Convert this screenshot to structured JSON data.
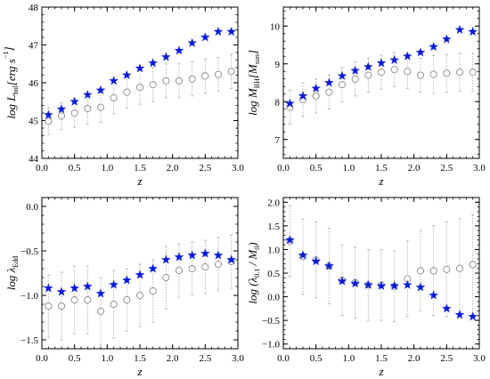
{
  "chart_data": [
    {
      "type": "scatter",
      "xlabel": "z",
      "ylabel_main": "log L",
      "ylabel_sub": "bol",
      "ylabel_unit": "[erg s",
      "ylabel_sup": "−1",
      "ylabel_close": "]",
      "xlim": [
        0.0,
        3.0
      ],
      "ylim": [
        44,
        48
      ],
      "xticks": [
        0.0,
        0.5,
        1.0,
        1.5,
        2.0,
        2.5,
        3.0
      ],
      "xtick_labels": [
        "0.0",
        "0.5",
        "1.0",
        "1.5",
        "2.0",
        "2.5",
        "3.0"
      ],
      "yticks": [
        44,
        45,
        46,
        47,
        48
      ],
      "ytick_labels": [
        "44",
        "45",
        "46",
        "47",
        "48"
      ],
      "series": [
        {
          "marker": "star",
          "color": "#0a1adc",
          "x": [
            0.1,
            0.3,
            0.5,
            0.7,
            0.9,
            1.1,
            1.3,
            1.5,
            1.7,
            1.9,
            2.1,
            2.3,
            2.5,
            2.7,
            2.9
          ],
          "y": [
            45.15,
            45.3,
            45.5,
            45.68,
            45.8,
            46.05,
            46.2,
            46.38,
            46.52,
            46.68,
            46.85,
            47.05,
            47.2,
            47.35,
            47.35
          ]
        },
        {
          "marker": "circle",
          "color": "#888888",
          "x": [
            0.1,
            0.3,
            0.5,
            0.7,
            0.9,
            1.1,
            1.3,
            1.5,
            1.7,
            1.9,
            2.1,
            2.3,
            2.5,
            2.7,
            2.9
          ],
          "y": [
            44.98,
            45.12,
            45.2,
            45.32,
            45.35,
            45.6,
            45.75,
            45.88,
            45.95,
            46.05,
            46.05,
            46.1,
            46.18,
            46.22,
            46.3
          ],
          "err": [
            0.35,
            0.35,
            0.38,
            0.4,
            0.4,
            0.42,
            0.42,
            0.45,
            0.45,
            0.45,
            0.45,
            0.45,
            0.45,
            0.45,
            0.45
          ]
        }
      ]
    },
    {
      "type": "scatter",
      "xlabel": "z",
      "ylabel_main": "log M",
      "ylabel_sub": "BH",
      "ylabel_unit": "[M",
      "ylabel_sub2": "sun",
      "ylabel_close": "]",
      "xlim": [
        0.0,
        3.0
      ],
      "ylim": [
        6.5,
        10.5
      ],
      "xticks": [
        0.0,
        0.5,
        1.0,
        1.5,
        2.0,
        2.5,
        3.0
      ],
      "xtick_labels": [
        "0.0",
        "0.5",
        "1.0",
        "1.5",
        "2.0",
        "2.5",
        "3.0"
      ],
      "yticks": [
        7,
        8,
        9,
        10
      ],
      "ytick_labels": [
        "7",
        "8",
        "9",
        "10"
      ],
      "series": [
        {
          "marker": "star",
          "color": "#0a1adc",
          "x": [
            0.1,
            0.3,
            0.5,
            0.7,
            0.9,
            1.1,
            1.3,
            1.5,
            1.7,
            1.9,
            2.1,
            2.3,
            2.5,
            2.7,
            2.9
          ],
          "y": [
            7.95,
            8.15,
            8.35,
            8.5,
            8.68,
            8.82,
            8.92,
            9.02,
            9.1,
            9.2,
            9.3,
            9.45,
            9.65,
            9.9,
            9.85
          ],
          "legend": null
        },
        {
          "marker": "circle",
          "color": "#888888",
          "x": [
            0.1,
            0.3,
            0.5,
            0.7,
            0.9,
            1.1,
            1.3,
            1.5,
            1.7,
            1.9,
            2.1,
            2.3,
            2.5,
            2.7,
            2.9
          ],
          "y": [
            7.85,
            8.05,
            8.15,
            8.25,
            8.45,
            8.6,
            8.7,
            8.78,
            8.85,
            8.8,
            8.7,
            8.72,
            8.75,
            8.78,
            8.78
          ],
          "err": [
            0.45,
            0.45,
            0.45,
            0.45,
            0.45,
            0.45,
            0.45,
            0.45,
            0.45,
            0.45,
            0.45,
            0.5,
            0.5,
            0.5,
            0.5
          ]
        }
      ]
    },
    {
      "type": "scatter",
      "xlabel": "z",
      "ylabel_main": "log λ",
      "ylabel_sub": "Edd",
      "xlim": [
        0.0,
        3.0
      ],
      "ylim": [
        -1.6,
        0.1
      ],
      "xticks": [
        0.0,
        0.5,
        1.0,
        1.5,
        2.0,
        2.5,
        3.0
      ],
      "xtick_labels": [
        "0.0",
        "0.5",
        "1.0",
        "1.5",
        "2.0",
        "2.5",
        "3.0"
      ],
      "yticks": [
        -1.5,
        -1.0,
        -0.5,
        0.0
      ],
      "ytick_labels": [
        "−1.5",
        "−1.0",
        "−0.5",
        "0.0"
      ],
      "series": [
        {
          "marker": "star",
          "color": "#0a1adc",
          "x": [
            0.1,
            0.3,
            0.5,
            0.7,
            0.9,
            1.1,
            1.3,
            1.5,
            1.7,
            1.9,
            2.1,
            2.3,
            2.5,
            2.7,
            2.9
          ],
          "y": [
            -0.92,
            -0.96,
            -0.92,
            -0.9,
            -0.98,
            -0.88,
            -0.83,
            -0.77,
            -0.7,
            -0.6,
            -0.57,
            -0.55,
            -0.53,
            -0.55,
            -0.6
          ]
        },
        {
          "marker": "circle",
          "color": "#888888",
          "x": [
            0.1,
            0.3,
            0.5,
            0.7,
            0.9,
            1.1,
            1.3,
            1.5,
            1.7,
            1.9,
            2.1,
            2.3,
            2.5,
            2.7,
            2.9
          ],
          "y": [
            -1.12,
            -1.12,
            -1.05,
            -1.05,
            -1.18,
            -1.1,
            -1.05,
            -1.0,
            -0.95,
            -0.8,
            -0.72,
            -0.7,
            -0.68,
            -0.65,
            -0.62
          ],
          "err": [
            0.35,
            0.38,
            0.38,
            0.38,
            0.38,
            0.38,
            0.35,
            0.35,
            0.35,
            0.35,
            0.3,
            0.3,
            0.3,
            0.3,
            0.3
          ]
        }
      ]
    },
    {
      "type": "scatter",
      "xlabel": "z",
      "ylabel_main": "log (λ",
      "ylabel_sub": "0.1",
      "ylabel_unit": " / M",
      "ylabel_sub2": "0",
      "ylabel_close": ")",
      "xlim": [
        0.0,
        3.0
      ],
      "ylim": [
        -1.1,
        2.1
      ],
      "xticks": [
        0.0,
        0.5,
        1.0,
        1.5,
        2.0,
        2.5,
        3.0
      ],
      "xtick_labels": [
        "0.0",
        "0.5",
        "1.0",
        "1.5",
        "2.0",
        "2.5",
        "3.0"
      ],
      "yticks": [
        -1.0,
        -0.5,
        0.0,
        0.5,
        1.0,
        1.5,
        2.0
      ],
      "ytick_labels": [
        "−1.0",
        "−0.5",
        "0.0",
        "0.5",
        "1.0",
        "1.5",
        "2.0"
      ],
      "series": [
        {
          "marker": "star",
          "color": "#0a1adc",
          "x": [
            0.1,
            0.3,
            0.5,
            0.7,
            0.9,
            1.1,
            1.3,
            1.5,
            1.7,
            1.9,
            2.1,
            2.3,
            2.5,
            2.7,
            2.9
          ],
          "y": [
            1.2,
            0.88,
            0.75,
            0.65,
            0.33,
            0.28,
            0.25,
            0.23,
            0.23,
            0.25,
            0.2,
            0.03,
            -0.25,
            -0.38,
            -0.42
          ]
        },
        {
          "marker": "circle",
          "color": "#888888",
          "x": [
            0.1,
            0.3,
            0.5,
            0.7,
            0.9,
            1.1,
            1.3,
            1.5,
            1.7,
            1.9,
            2.1,
            2.3,
            2.5,
            2.7,
            2.9
          ],
          "y": [
            1.18,
            0.85,
            0.78,
            0.65,
            0.35,
            0.3,
            0.25,
            0.25,
            0.22,
            0.38,
            0.55,
            0.55,
            0.58,
            0.6,
            0.68
          ],
          "err": [
            0.75,
            0.8,
            0.8,
            0.8,
            0.75,
            0.75,
            0.75,
            0.75,
            0.75,
            0.8,
            0.85,
            0.95,
            1.0,
            1.05,
            1.05
          ]
        }
      ]
    }
  ]
}
